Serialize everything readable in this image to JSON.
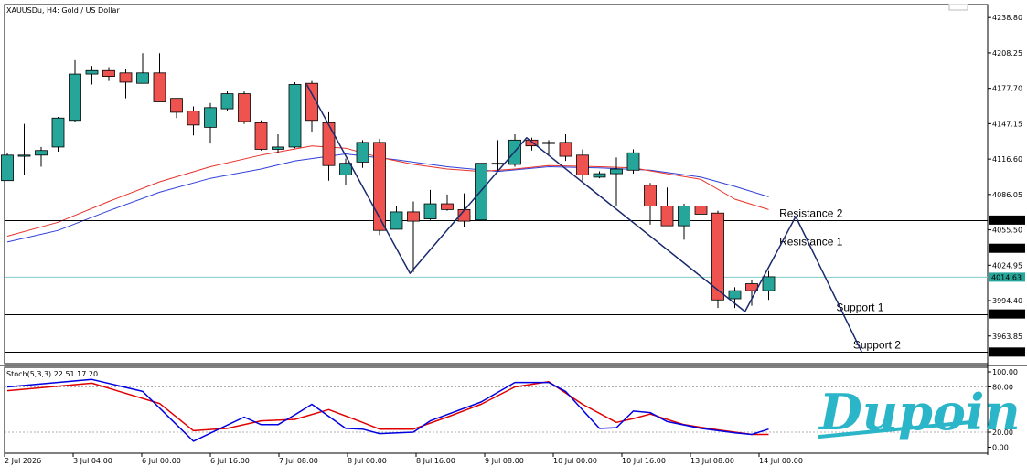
{
  "symbol_info": "XAUUSDu, H4:  Gold / US Dollar",
  "indicator_info": "Stoch(5,3,3) 22.51 17.20",
  "watermark": "Dupoin",
  "colors": {
    "bull": "#26a69a",
    "bear": "#ef5350",
    "ma_fast": "#e8322a",
    "ma_slow": "#3040d8",
    "pattern": "#1a2a6c",
    "current_price": "#80cbc4",
    "stoch_main": "#0000e0",
    "stoch_signal": "#e00000",
    "watermark": "#2bb5c8"
  },
  "chart_data": {
    "type": "candlestick",
    "main_ylim": [
      3940,
      4250
    ],
    "price_ticks": [
      "4238.80",
      "4208.25",
      "4177.70",
      "4147.15",
      "4116.60",
      "4086.05",
      "4055.50",
      "4024.95",
      "3994.40",
      "3963.85"
    ],
    "x_tick_labels": [
      "2 Jul 2026",
      "3 Jul 04:00",
      "6 Jul 00:00",
      "6 Jul 16:00",
      "7 Jul 08:00",
      "8 Jul 00:00",
      "8 Jul 16:00",
      "9 Jul 08:00",
      "10 Jul 00:00",
      "10 Jul 16:00",
      "13 Jul 08:00",
      "14 Jul 00:00"
    ],
    "candles": [
      {
        "o": 4098,
        "h": 4122,
        "l": 4098,
        "c": 4120
      },
      {
        "o": 4119,
        "h": 4147,
        "l": 4103,
        "c": 4120
      },
      {
        "o": 4120,
        "h": 4127,
        "l": 4110,
        "c": 4124
      },
      {
        "o": 4127,
        "h": 4153,
        "l": 4123,
        "c": 4152
      },
      {
        "o": 4150,
        "h": 4202,
        "l": 4149,
        "c": 4190
      },
      {
        "o": 4190,
        "h": 4197,
        "l": 4181,
        "c": 4193
      },
      {
        "o": 4193,
        "h": 4196,
        "l": 4184,
        "c": 4188
      },
      {
        "o": 4191,
        "h": 4194,
        "l": 4169,
        "c": 4183
      },
      {
        "o": 4182,
        "h": 4208,
        "l": 4183,
        "c": 4191
      },
      {
        "o": 4191,
        "h": 4208,
        "l": 4167,
        "c": 4166
      },
      {
        "o": 4169,
        "h": 4169,
        "l": 4152,
        "c": 4157
      },
      {
        "o": 4158,
        "h": 4162,
        "l": 4137,
        "c": 4146
      },
      {
        "o": 4144,
        "h": 4165,
        "l": 4130,
        "c": 4161
      },
      {
        "o": 4160,
        "h": 4175,
        "l": 4158,
        "c": 4173
      },
      {
        "o": 4173,
        "h": 4175,
        "l": 4147,
        "c": 4149
      },
      {
        "o": 4148,
        "h": 4150,
        "l": 4124,
        "c": 4125
      },
      {
        "o": 4125,
        "h": 4138,
        "l": 4122,
        "c": 4127
      },
      {
        "o": 4127,
        "h": 4183,
        "l": 4126,
        "c": 4181
      },
      {
        "o": 4182,
        "h": 4184,
        "l": 4140,
        "c": 4150
      },
      {
        "o": 4148,
        "h": 4157,
        "l": 4098,
        "c": 4111
      },
      {
        "o": 4103,
        "h": 4117,
        "l": 4094,
        "c": 4113
      },
      {
        "o": 4114,
        "h": 4133,
        "l": 4109,
        "c": 4131
      },
      {
        "o": 4131,
        "h": 4134,
        "l": 4051,
        "c": 4055
      },
      {
        "o": 4056,
        "h": 4076,
        "l": 4056,
        "c": 4071
      },
      {
        "o": 4071,
        "h": 4080,
        "l": 4019,
        "c": 4063
      },
      {
        "o": 4065,
        "h": 4090,
        "l": 4064,
        "c": 4078
      },
      {
        "o": 4078,
        "h": 4086,
        "l": 4072,
        "c": 4073
      },
      {
        "o": 4073,
        "h": 4087,
        "l": 4058,
        "c": 4063
      },
      {
        "o": 4064,
        "h": 4113,
        "l": 4064,
        "c": 4113
      },
      {
        "o": 4113,
        "h": 4133,
        "l": 4106,
        "c": 4113
      },
      {
        "o": 4112,
        "h": 4138,
        "l": 4110,
        "c": 4133
      },
      {
        "o": 4133,
        "h": 4135,
        "l": 4124,
        "c": 4128
      },
      {
        "o": 4130,
        "h": 4133,
        "l": 4120,
        "c": 4131
      },
      {
        "o": 4131,
        "h": 4138,
        "l": 4115,
        "c": 4119
      },
      {
        "o": 4120,
        "h": 4125,
        "l": 4098,
        "c": 4103
      },
      {
        "o": 4101,
        "h": 4106,
        "l": 4100,
        "c": 4104
      },
      {
        "o": 4104,
        "h": 4118,
        "l": 4076,
        "c": 4108
      },
      {
        "o": 4107,
        "h": 4125,
        "l": 4104,
        "c": 4122
      },
      {
        "o": 4094,
        "h": 4096,
        "l": 4060,
        "c": 4076
      },
      {
        "o": 4076,
        "h": 4092,
        "l": 4059,
        "c": 4059
      },
      {
        "o": 4059,
        "h": 4078,
        "l": 4047,
        "c": 4076
      },
      {
        "o": 4076,
        "h": 4084,
        "l": 4049,
        "c": 4069
      },
      {
        "o": 4070,
        "h": 4072,
        "l": 3988,
        "c": 3995
      },
      {
        "o": 3996,
        "h": 4006,
        "l": 3988,
        "c": 4003
      },
      {
        "o": 4009,
        "h": 4012,
        "l": 3990,
        "c": 4003
      },
      {
        "o": 4003,
        "h": 4020,
        "l": 3995,
        "c": 4015
      }
    ],
    "ma_fast": [
      {
        "i": 0,
        "v": 4050
      },
      {
        "i": 3,
        "v": 4062
      },
      {
        "i": 6,
        "v": 4080
      },
      {
        "i": 9,
        "v": 4097
      },
      {
        "i": 12,
        "v": 4110
      },
      {
        "i": 15,
        "v": 4120
      },
      {
        "i": 18,
        "v": 4128
      },
      {
        "i": 20,
        "v": 4126
      },
      {
        "i": 22,
        "v": 4118
      },
      {
        "i": 24,
        "v": 4112
      },
      {
        "i": 26,
        "v": 4108
      },
      {
        "i": 28,
        "v": 4106
      },
      {
        "i": 30,
        "v": 4108
      },
      {
        "i": 32,
        "v": 4111
      },
      {
        "i": 35,
        "v": 4110
      },
      {
        "i": 37,
        "v": 4109
      },
      {
        "i": 39,
        "v": 4104
      },
      {
        "i": 41,
        "v": 4099
      },
      {
        "i": 43,
        "v": 4082
      },
      {
        "i": 45,
        "v": 4073
      }
    ],
    "ma_slow": [
      {
        "i": 0,
        "v": 4045
      },
      {
        "i": 3,
        "v": 4055
      },
      {
        "i": 6,
        "v": 4072
      },
      {
        "i": 9,
        "v": 4088
      },
      {
        "i": 12,
        "v": 4100
      },
      {
        "i": 15,
        "v": 4108
      },
      {
        "i": 17,
        "v": 4115
      },
      {
        "i": 20,
        "v": 4121
      },
      {
        "i": 23,
        "v": 4116
      },
      {
        "i": 26,
        "v": 4110
      },
      {
        "i": 29,
        "v": 4106
      },
      {
        "i": 32,
        "v": 4110
      },
      {
        "i": 35,
        "v": 4109
      },
      {
        "i": 38,
        "v": 4107
      },
      {
        "i": 41,
        "v": 4101
      },
      {
        "i": 43,
        "v": 4093
      },
      {
        "i": 45,
        "v": 4084
      }
    ],
    "pattern_line": [
      {
        "i": 17.7,
        "v": 4181
      },
      {
        "i": 23.8,
        "v": 4018
      },
      {
        "i": 30.7,
        "v": 4135
      },
      {
        "i": 43.6,
        "v": 3985
      },
      {
        "i": 46.6,
        "v": 4067
      },
      {
        "i": 50.5,
        "v": 3949.99
      }
    ],
    "levels": [
      {
        "name": "Resistance 2",
        "price": 4063.93,
        "price_label": "4063.93",
        "anchor_i": 47.5
      },
      {
        "name": "Resistance 1",
        "price": 4039.61,
        "price_label": "4039.61",
        "anchor_i": 47.5
      },
      {
        "name": "Support 1",
        "price": 3982.88,
        "price_label": "3982.88",
        "anchor_i": 50.4
      },
      {
        "name": "Support 2",
        "price": 3949.99,
        "price_label": "3949.99",
        "anchor_i": 51.4
      }
    ],
    "current_price": {
      "price": 4014.63,
      "label": "4014.63"
    },
    "stoch": {
      "ylim": [
        0,
        100
      ],
      "y_ticks": [
        "100.00",
        "80.00",
        "20.00",
        "0.00"
      ],
      "levels": [
        80,
        20
      ],
      "main": [
        {
          "i": 0,
          "v": 80
        },
        {
          "i": 5,
          "v": 90
        },
        {
          "i": 8,
          "v": 74
        },
        {
          "i": 10,
          "v": 30
        },
        {
          "i": 11,
          "v": 8
        },
        {
          "i": 14,
          "v": 40
        },
        {
          "i": 15,
          "v": 30
        },
        {
          "i": 16,
          "v": 30
        },
        {
          "i": 17,
          "v": 43
        },
        {
          "i": 18,
          "v": 57
        },
        {
          "i": 20,
          "v": 25
        },
        {
          "i": 21,
          "v": 24
        },
        {
          "i": 22,
          "v": 18
        },
        {
          "i": 24,
          "v": 20
        },
        {
          "i": 25,
          "v": 35
        },
        {
          "i": 28,
          "v": 60
        },
        {
          "i": 30,
          "v": 86
        },
        {
          "i": 32,
          "v": 86
        },
        {
          "i": 33,
          "v": 74
        },
        {
          "i": 35,
          "v": 25
        },
        {
          "i": 36,
          "v": 26
        },
        {
          "i": 37,
          "v": 48
        },
        {
          "i": 38,
          "v": 46
        },
        {
          "i": 39,
          "v": 34
        },
        {
          "i": 41,
          "v": 25
        },
        {
          "i": 43,
          "v": 19
        },
        {
          "i": 44,
          "v": 17
        },
        {
          "i": 45,
          "v": 24
        }
      ],
      "signal": [
        {
          "i": 0,
          "v": 75
        },
        {
          "i": 5,
          "v": 85
        },
        {
          "i": 9,
          "v": 58
        },
        {
          "i": 11,
          "v": 22
        },
        {
          "i": 13,
          "v": 25
        },
        {
          "i": 15,
          "v": 35
        },
        {
          "i": 17,
          "v": 37
        },
        {
          "i": 19,
          "v": 50
        },
        {
          "i": 21,
          "v": 33
        },
        {
          "i": 22,
          "v": 24
        },
        {
          "i": 24,
          "v": 24
        },
        {
          "i": 26,
          "v": 40
        },
        {
          "i": 28,
          "v": 57
        },
        {
          "i": 30,
          "v": 80
        },
        {
          "i": 32,
          "v": 87
        },
        {
          "i": 34,
          "v": 57
        },
        {
          "i": 36,
          "v": 33
        },
        {
          "i": 37,
          "v": 38
        },
        {
          "i": 38,
          "v": 44
        },
        {
          "i": 40,
          "v": 30
        },
        {
          "i": 42,
          "v": 23
        },
        {
          "i": 44,
          "v": 17
        },
        {
          "i": 45,
          "v": 17
        }
      ]
    }
  }
}
